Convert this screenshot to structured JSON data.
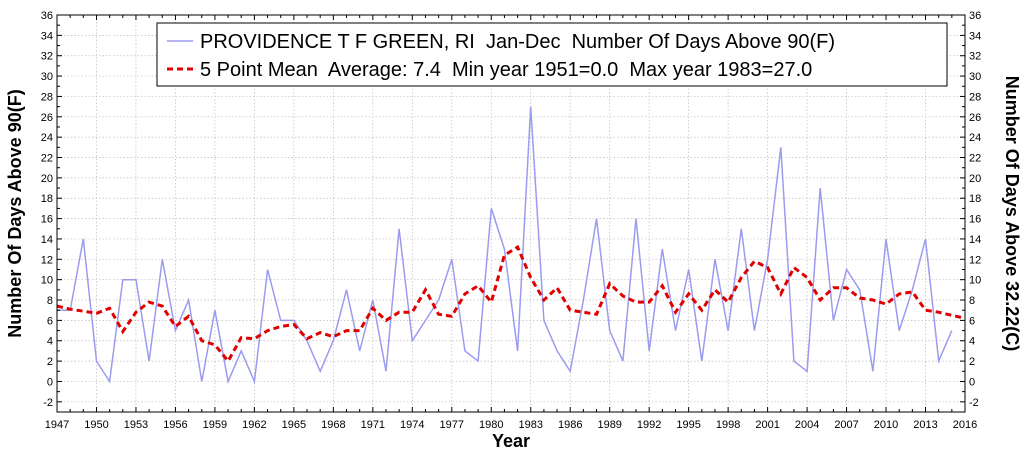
{
  "chart_data": {
    "type": "line",
    "xlabel": "Year",
    "ylabel_left": "Number Of Days Above 90(F)",
    "ylabel_right": "Number Of Days Above 32.22(C)",
    "xlim": [
      1947,
      2016
    ],
    "ylim": [
      -3,
      36
    ],
    "x_ticks": [
      1947,
      1950,
      1953,
      1956,
      1959,
      1962,
      1965,
      1968,
      1971,
      1974,
      1977,
      1980,
      1983,
      1986,
      1989,
      1992,
      1995,
      1998,
      2001,
      2004,
      2007,
      2010,
      2013,
      2016
    ],
    "y_ticks": [
      -2,
      0,
      2,
      4,
      6,
      8,
      10,
      12,
      14,
      16,
      18,
      20,
      22,
      24,
      26,
      28,
      30,
      32,
      34,
      36
    ],
    "grid": true,
    "legend_position": "top",
    "colors": {
      "annual": "#9b9bf0",
      "mean": "#e00000"
    },
    "series": [
      {
        "name": "PROVIDENCE T F GREEN, RI  Jan-Dec  Number Of Days Above 90(F)",
        "style": "solid",
        "x": [
          1947,
          1948,
          1949,
          1950,
          1951,
          1952,
          1953,
          1954,
          1955,
          1956,
          1957,
          1958,
          1959,
          1960,
          1961,
          1962,
          1963,
          1964,
          1965,
          1966,
          1967,
          1968,
          1969,
          1970,
          1971,
          1972,
          1973,
          1974,
          1975,
          1976,
          1977,
          1978,
          1979,
          1980,
          1981,
          1982,
          1983,
          1984,
          1985,
          1986,
          1987,
          1988,
          1989,
          1990,
          1991,
          1992,
          1993,
          1994,
          1995,
          1996,
          1997,
          1998,
          1999,
          2000,
          2001,
          2002,
          2003,
          2004,
          2005,
          2006,
          2007,
          2008,
          2009,
          2010,
          2011,
          2012,
          2013,
          2014,
          2015
        ],
        "values": [
          7,
          7,
          14,
          2,
          0,
          10,
          10,
          2,
          12,
          5,
          8,
          0,
          7,
          0,
          3,
          0,
          11,
          6,
          6,
          4,
          1,
          4,
          9,
          3,
          8,
          1,
          15,
          4,
          6,
          8,
          12,
          3,
          2,
          17,
          13,
          3,
          27,
          6,
          3,
          1,
          8,
          16,
          5,
          2,
          16,
          3,
          13,
          5,
          11,
          2,
          12,
          5,
          15,
          5,
          12,
          23,
          2,
          1,
          19,
          6,
          11,
          9,
          1,
          14,
          5,
          9,
          14,
          2,
          5
        ]
      },
      {
        "name": "5 Point Mean  Average: 7.4  Min year 1951=0.0  Max year 1983=27.0",
        "style": "dashed",
        "x": [
          1947,
          1948,
          1949,
          1950,
          1951,
          1952,
          1953,
          1954,
          1955,
          1956,
          1957,
          1958,
          1959,
          1960,
          1961,
          1962,
          1963,
          1964,
          1965,
          1966,
          1967,
          1968,
          1969,
          1970,
          1971,
          1972,
          1973,
          1974,
          1975,
          1976,
          1977,
          1978,
          1979,
          1980,
          1981,
          1982,
          1983,
          1984,
          1985,
          1986,
          1987,
          1988,
          1989,
          1990,
          1991,
          1992,
          1993,
          1994,
          1995,
          1996,
          1997,
          1998,
          1999,
          2000,
          2001,
          2002,
          2003,
          2004,
          2005,
          2006,
          2007,
          2008,
          2009,
          2010,
          2011,
          2012,
          2013,
          2014,
          2015,
          2016
        ],
        "values": [
          7.4,
          7.1,
          6.9,
          6.7,
          7.2,
          4.9,
          6.8,
          7.8,
          7.4,
          5.4,
          6.4,
          4.0,
          3.6,
          2.0,
          4.3,
          4.2,
          5.0,
          5.4,
          5.6,
          4.2,
          4.8,
          4.4,
          5.0,
          5.0,
          7.2,
          6.0,
          6.8,
          6.8,
          9.0,
          6.6,
          6.4,
          8.6,
          9.4,
          7.8,
          12.4,
          13.2,
          10.2,
          8.0,
          9.2,
          7.0,
          6.8,
          6.6,
          9.6,
          8.4,
          7.8,
          7.8,
          9.4,
          6.8,
          8.6,
          7.0,
          9.0,
          7.8,
          10.2,
          11.8,
          11.2,
          8.6,
          11.2,
          10.2,
          8.0,
          9.2,
          9.2,
          8.2,
          8.0,
          7.6,
          8.6,
          8.8,
          7.0,
          6.8,
          6.5,
          6.2
        ]
      }
    ]
  }
}
